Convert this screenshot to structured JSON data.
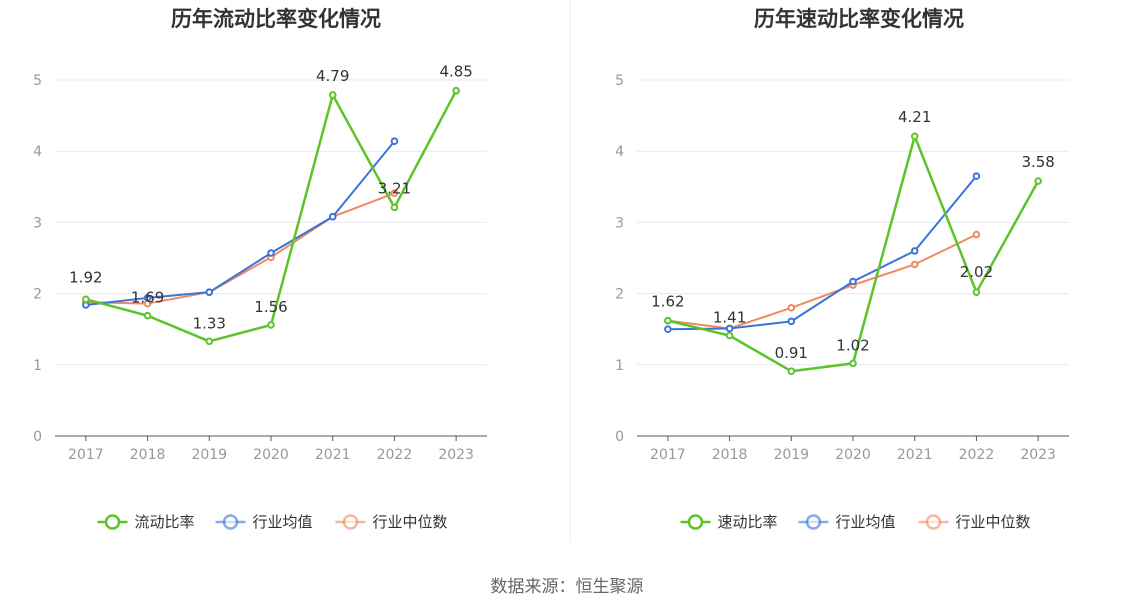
{
  "source": "数据来源：恒生聚源",
  "colors": {
    "primary": "#5cc42a",
    "average": "#3a73d9",
    "median": "#f08a5d",
    "grid": "#e6e9f0",
    "axis": "#555555",
    "divider": "#eeeeee"
  },
  "chart_data": [
    {
      "type": "line",
      "title": "历年流动比率变化情况",
      "categories": [
        "2017",
        "2018",
        "2019",
        "2020",
        "2021",
        "2022",
        "2023"
      ],
      "ylim": [
        0,
        5
      ],
      "yticks": [
        "0",
        "1",
        "2",
        "3",
        "4",
        "5"
      ],
      "series": [
        {
          "name": "流动比率",
          "key": "primary",
          "values": [
            1.92,
            1.69,
            1.33,
            1.56,
            4.79,
            3.21,
            4.85
          ],
          "labels": [
            "1.92",
            "1.69",
            "1.33",
            "1.56",
            "4.79",
            "3.21",
            "4.85"
          ]
        },
        {
          "name": "行业均值",
          "key": "average",
          "values": [
            1.84,
            1.94,
            2.02,
            2.57,
            3.08,
            4.14,
            null
          ]
        },
        {
          "name": "行业中位数",
          "key": "median",
          "values": [
            1.88,
            1.86,
            2.02,
            2.51,
            3.08,
            3.41,
            null
          ]
        }
      ]
    },
    {
      "type": "line",
      "title": "历年速动比率变化情况",
      "categories": [
        "2017",
        "2018",
        "2019",
        "2020",
        "2021",
        "2022",
        "2023"
      ],
      "ylim": [
        0,
        5
      ],
      "yticks": [
        "0",
        "1",
        "2",
        "3",
        "4",
        "5"
      ],
      "series": [
        {
          "name": "速动比率",
          "key": "primary",
          "values": [
            1.62,
            1.41,
            0.91,
            1.02,
            4.21,
            2.02,
            3.58
          ],
          "labels": [
            "1.62",
            "1.41",
            "0.91",
            "1.02",
            "4.21",
            "2.02",
            "3.58"
          ]
        },
        {
          "name": "行业均值",
          "key": "average",
          "values": [
            1.5,
            1.51,
            1.61,
            2.17,
            2.6,
            3.65,
            null
          ]
        },
        {
          "name": "行业中位数",
          "key": "median",
          "values": [
            1.62,
            1.51,
            1.8,
            2.12,
            2.41,
            2.83,
            null
          ]
        }
      ]
    }
  ]
}
